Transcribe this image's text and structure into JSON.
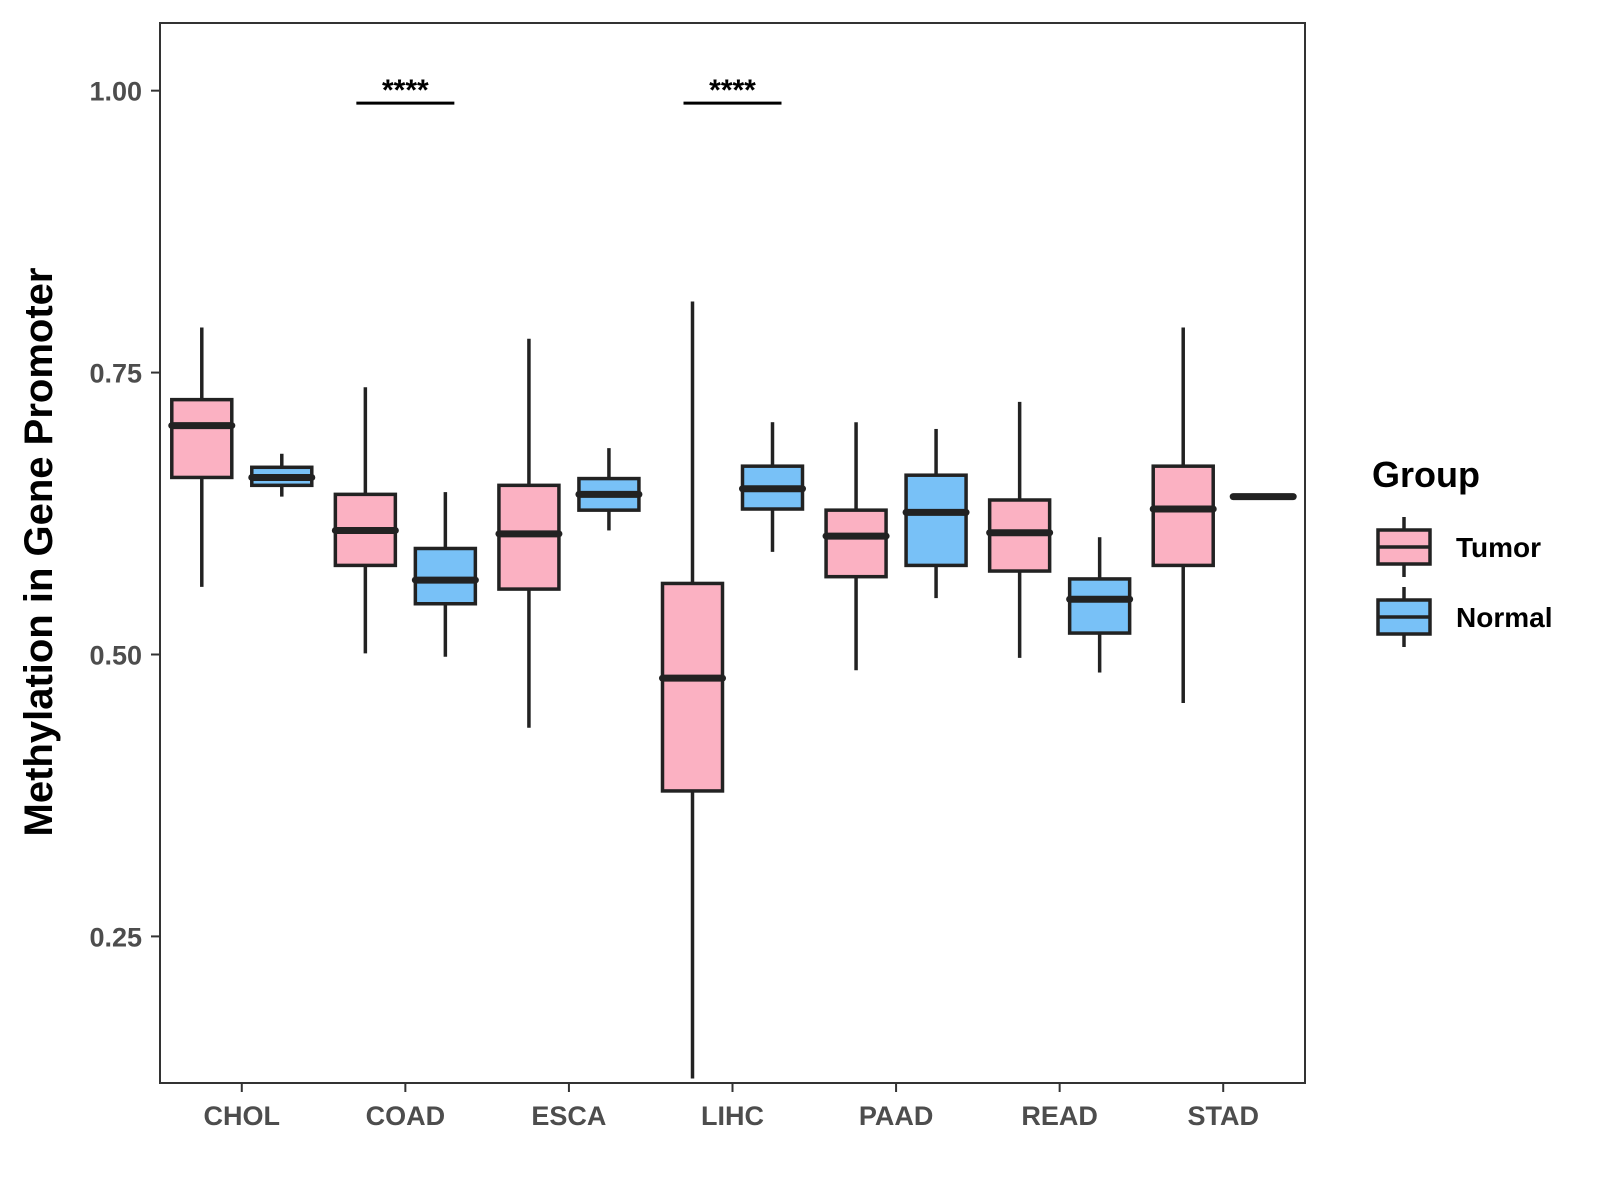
{
  "colors": {
    "tumor": "#FBB1C2",
    "normal": "#78C1F7",
    "stroke": "#222222",
    "axis_text": "#4d4d4d"
  },
  "chart_data": {
    "type": "boxplot",
    "title": "",
    "xlabel": "",
    "ylabel": "Methylation in Gene Promoter",
    "ylim": [
      0.12,
      1.06
    ],
    "yticks": [
      0.25,
      0.5,
      0.75,
      1.0
    ],
    "ytick_labels": [
      "0.25",
      "0.50",
      "0.75",
      "1.00"
    ],
    "grid": false,
    "legend": {
      "title": "Group",
      "position": "right",
      "entries": [
        "Tumor",
        "Normal"
      ]
    },
    "categories": [
      "CHOL",
      "COAD",
      "ESCA",
      "LIHC",
      "PAAD",
      "READ",
      "STAD"
    ],
    "series": [
      {
        "name": "Tumor",
        "boxes": [
          {
            "min": 0.56,
            "q1": 0.657,
            "median": 0.703,
            "q3": 0.726,
            "max": 0.79
          },
          {
            "min": 0.501,
            "q1": 0.579,
            "median": 0.61,
            "q3": 0.642,
            "max": 0.737
          },
          {
            "min": 0.435,
            "q1": 0.558,
            "median": 0.607,
            "q3": 0.65,
            "max": 0.78
          },
          {
            "min": 0.124,
            "q1": 0.379,
            "median": 0.479,
            "q3": 0.563,
            "max": 0.813
          },
          {
            "min": 0.486,
            "q1": 0.569,
            "median": 0.605,
            "q3": 0.628,
            "max": 0.706
          },
          {
            "min": 0.497,
            "q1": 0.574,
            "median": 0.608,
            "q3": 0.637,
            "max": 0.724
          },
          {
            "min": 0.457,
            "q1": 0.579,
            "median": 0.629,
            "q3": 0.667,
            "max": 0.79
          }
        ]
      },
      {
        "name": "Normal",
        "boxes": [
          {
            "min": 0.64,
            "q1": 0.65,
            "median": 0.657,
            "q3": 0.666,
            "max": 0.678
          },
          {
            "min": 0.498,
            "q1": 0.545,
            "median": 0.566,
            "q3": 0.594,
            "max": 0.644
          },
          {
            "min": 0.61,
            "q1": 0.628,
            "median": 0.642,
            "q3": 0.656,
            "max": 0.683
          },
          {
            "min": 0.591,
            "q1": 0.629,
            "median": 0.647,
            "q3": 0.667,
            "max": 0.706
          },
          {
            "min": 0.55,
            "q1": 0.579,
            "median": 0.626,
            "q3": 0.659,
            "max": 0.7
          },
          {
            "min": 0.484,
            "q1": 0.519,
            "median": 0.549,
            "q3": 0.567,
            "max": 0.604
          },
          {
            "min": 0.64,
            "q1": 0.64,
            "median": 0.64,
            "q3": 0.64,
            "max": 0.64
          }
        ]
      }
    ],
    "annotations": [
      {
        "category": "COAD",
        "text": "****",
        "y": 0.989
      },
      {
        "category": "LIHC",
        "text": "****",
        "y": 0.989
      }
    ]
  }
}
